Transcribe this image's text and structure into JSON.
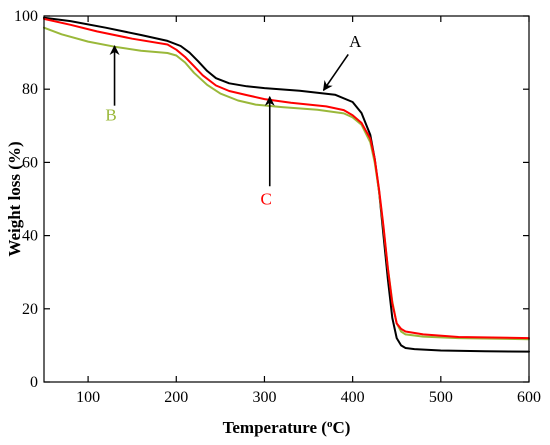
{
  "chart_data": {
    "type": "line",
    "title": "",
    "xlabel": "Temperature (",
    "xlabel_sup": "o",
    "xlabel_tail": "C)",
    "ylabel": "Weight loss (%)",
    "xlim": [
      50,
      600
    ],
    "ylim": [
      0,
      100
    ],
    "xticks": [
      100,
      200,
      300,
      400,
      500,
      600
    ],
    "yticks": [
      0,
      20,
      40,
      60,
      80,
      100
    ],
    "grid": false,
    "series": [
      {
        "name": "A",
        "color": "#000000",
        "x": [
          50,
          80,
          120,
          160,
          190,
          205,
          215,
          225,
          235,
          245,
          260,
          280,
          300,
          340,
          380,
          400,
          410,
          420,
          425,
          430,
          435,
          440,
          445,
          450,
          455,
          460,
          470,
          500,
          550,
          600
        ],
        "y": [
          99.5,
          98.6,
          96.8,
          94.8,
          93.2,
          91.8,
          90.0,
          87.6,
          85.0,
          83.0,
          81.6,
          80.8,
          80.3,
          79.6,
          78.5,
          76.5,
          73.5,
          67.5,
          61.0,
          52.0,
          40.0,
          28.0,
          17.5,
          12.0,
          10.0,
          9.3,
          9.0,
          8.6,
          8.4,
          8.3
        ]
      },
      {
        "name": "B",
        "color": "#9ab83a",
        "x": [
          50,
          70,
          100,
          130,
          160,
          190,
          200,
          210,
          220,
          235,
          250,
          270,
          290,
          320,
          360,
          390,
          400,
          410,
          420,
          425,
          430,
          435,
          440,
          445,
          450,
          455,
          460,
          480,
          520,
          600
        ],
        "y": [
          96.8,
          95.0,
          93.0,
          91.6,
          90.5,
          89.9,
          89.2,
          87.3,
          84.5,
          81.2,
          78.8,
          76.9,
          75.8,
          75.1,
          74.4,
          73.4,
          72.3,
          70.3,
          65.5,
          60.0,
          52.0,
          42.0,
          31.0,
          22.0,
          16.0,
          13.8,
          13.0,
          12.4,
          12.0,
          11.7
        ]
      },
      {
        "name": "C",
        "color": "#ff0000",
        "x": [
          50,
          80,
          110,
          150,
          190,
          200,
          210,
          220,
          230,
          245,
          260,
          280,
          300,
          330,
          370,
          390,
          400,
          410,
          420,
          425,
          430,
          435,
          440,
          445,
          450,
          455,
          460,
          480,
          520,
          600
        ],
        "y": [
          99.2,
          97.6,
          95.8,
          93.8,
          92.2,
          90.8,
          88.8,
          86.3,
          83.8,
          81.0,
          79.5,
          78.4,
          77.3,
          76.3,
          75.3,
          74.3,
          72.9,
          70.8,
          66.5,
          61.0,
          52.5,
          42.5,
          31.0,
          21.5,
          16.0,
          14.5,
          13.8,
          13.0,
          12.3,
          12.0
        ]
      }
    ],
    "annotations": [
      {
        "text": "A",
        "color": "#000000",
        "label_at": [
          403,
          91.5
        ],
        "tail": [
          395,
          89.5
        ],
        "head": [
          367,
          79.7
        ]
      },
      {
        "text": "B",
        "color": "#9ab83a",
        "label_at": [
          126,
          71.5
        ],
        "tail": [
          130,
          75.5
        ],
        "head": [
          130,
          91.8
        ]
      },
      {
        "text": "C",
        "color": "#ff0000",
        "label_at": [
          302,
          48.5
        ],
        "tail": [
          306,
          53.5
        ],
        "head": [
          306,
          77.9
        ]
      }
    ]
  }
}
